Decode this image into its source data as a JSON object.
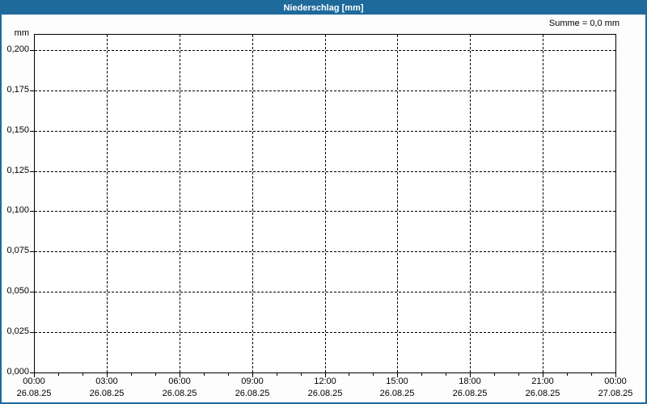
{
  "title_bar": {
    "title": "Niederschlag [mm]"
  },
  "colors": {
    "titlebar_bg": "#1d6a9b",
    "titlebar_text": "#ffffff",
    "outer_border": "#1d6a9b",
    "page_bg": "#fcfdfc",
    "plot_bg": "#ffffff",
    "grid": "#000000",
    "text": "#000000"
  },
  "chart_data": {
    "type": "line",
    "title": "Niederschlag [mm]",
    "ylabel": "mm",
    "xlabel": "",
    "sum_label": "Summe = 0,0 mm",
    "ylim": [
      0,
      0.21
    ],
    "grid": "dashed",
    "legend": "none",
    "yticks": [
      {
        "value": 0.2,
        "label": "0,200"
      },
      {
        "value": 0.175,
        "label": "0,175"
      },
      {
        "value": 0.15,
        "label": "0,150"
      },
      {
        "value": 0.125,
        "label": "0,125"
      },
      {
        "value": 0.1,
        "label": "0,100"
      },
      {
        "value": 0.075,
        "label": "0,075"
      },
      {
        "value": 0.05,
        "label": "0,050"
      },
      {
        "value": 0.025,
        "label": "0,025"
      },
      {
        "value": 0.0,
        "label": "0,000"
      }
    ],
    "xticks": [
      {
        "time": "00:00",
        "date": "26.08.25"
      },
      {
        "time": "03:00",
        "date": "26.08.25"
      },
      {
        "time": "06:00",
        "date": "26.08.25"
      },
      {
        "time": "09:00",
        "date": "26.08.25"
      },
      {
        "time": "12:00",
        "date": "26.08.25"
      },
      {
        "time": "15:00",
        "date": "26.08.25"
      },
      {
        "time": "18:00",
        "date": "26.08.25"
      },
      {
        "time": "21:00",
        "date": "26.08.25"
      },
      {
        "time": "00:00",
        "date": "27.08.25"
      }
    ],
    "hours_span": 24,
    "major_tick_interval_hours": 3,
    "minor_tick_interval_hours": 1,
    "series": [
      {
        "name": "Niederschlag",
        "values": [],
        "sum_mm": 0.0
      }
    ]
  }
}
